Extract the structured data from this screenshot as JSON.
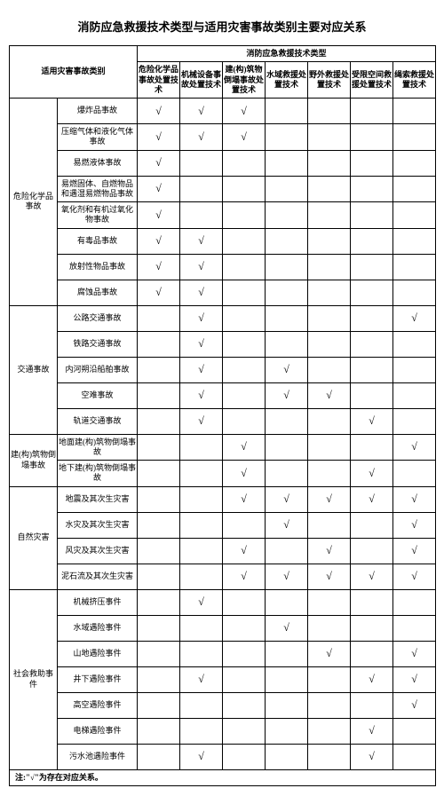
{
  "title": "消防应急救援技术类型与适用灾害事故类别主要对应关系",
  "header": {
    "rowLabel": "适用灾害事故类别",
    "groupLabel": "消防应急救援技术类型",
    "techTypes": [
      "危险化学品事故处置技术",
      "机械设备事故处置技术",
      "建(构)筑物倒塌事故处置技术",
      "水域救援处置技术",
      "野外救援处置技术",
      "受限空间救援处置技术",
      "绳索救援处置技术"
    ]
  },
  "groups": [
    {
      "name": "危险化学品事故",
      "rows": [
        {
          "label": "爆炸品事故",
          "marks": [
            1,
            1,
            1,
            0,
            0,
            0,
            0
          ]
        },
        {
          "label": "压缩气体和液化气体事故",
          "marks": [
            1,
            1,
            1,
            0,
            0,
            0,
            0
          ]
        },
        {
          "label": "易燃液体事故",
          "marks": [
            1,
            0,
            0,
            0,
            0,
            0,
            0
          ]
        },
        {
          "label": "易燃固体、自燃物品和遇湿易燃物品事故",
          "marks": [
            1,
            0,
            0,
            0,
            0,
            0,
            0
          ]
        },
        {
          "label": "氧化剂和有机过氧化物事故",
          "marks": [
            1,
            0,
            0,
            0,
            0,
            0,
            0
          ]
        },
        {
          "label": "有毒品事故",
          "marks": [
            1,
            1,
            0,
            0,
            0,
            0,
            0
          ]
        },
        {
          "label": "放射性物品事故",
          "marks": [
            1,
            1,
            0,
            0,
            0,
            0,
            0
          ]
        },
        {
          "label": "腐蚀品事故",
          "marks": [
            1,
            1,
            0,
            0,
            0,
            0,
            0
          ]
        }
      ]
    },
    {
      "name": "交通事故",
      "rows": [
        {
          "label": "公路交通事故",
          "marks": [
            0,
            1,
            0,
            0,
            0,
            0,
            1
          ]
        },
        {
          "label": "铁路交通事故",
          "marks": [
            0,
            1,
            0,
            0,
            0,
            0,
            0
          ]
        },
        {
          "label": "内河朔沿船舶事故",
          "marks": [
            0,
            1,
            0,
            1,
            0,
            0,
            0
          ]
        },
        {
          "label": "空难事故",
          "marks": [
            0,
            1,
            0,
            1,
            1,
            0,
            0
          ]
        },
        {
          "label": "轨道交通事故",
          "marks": [
            0,
            1,
            0,
            0,
            0,
            1,
            0
          ]
        }
      ]
    },
    {
      "name": "建(构)筑物倒塌事故",
      "rows": [
        {
          "label": "地面建(构)筑物倒塌事故",
          "marks": [
            0,
            0,
            1,
            0,
            0,
            0,
            1
          ]
        },
        {
          "label": "地下建(构)筑物倒塌事故",
          "marks": [
            0,
            0,
            1,
            0,
            0,
            1,
            0
          ]
        }
      ]
    },
    {
      "name": "自然灾害",
      "rows": [
        {
          "label": "地震及其次生灾害",
          "marks": [
            0,
            0,
            1,
            1,
            1,
            1,
            1
          ]
        },
        {
          "label": "水灾及其次生灾害",
          "marks": [
            0,
            0,
            0,
            1,
            0,
            0,
            1
          ]
        },
        {
          "label": "风灾及其次生灾害",
          "marks": [
            0,
            0,
            1,
            0,
            1,
            0,
            1
          ]
        },
        {
          "label": "泥石流及其次生灾害",
          "marks": [
            0,
            0,
            1,
            1,
            1,
            1,
            1
          ]
        }
      ]
    },
    {
      "name": "社会救助事件",
      "rows": [
        {
          "label": "机械挤压事件",
          "marks": [
            0,
            1,
            0,
            0,
            0,
            0,
            0
          ]
        },
        {
          "label": "水域遇险事件",
          "marks": [
            0,
            0,
            0,
            1,
            0,
            0,
            0
          ]
        },
        {
          "label": "山地遇险事件",
          "marks": [
            0,
            0,
            0,
            0,
            1,
            0,
            1
          ]
        },
        {
          "label": "井下遇险事件",
          "marks": [
            0,
            1,
            0,
            0,
            0,
            1,
            1
          ]
        },
        {
          "label": "高空遇险事件",
          "marks": [
            0,
            0,
            0,
            0,
            0,
            0,
            1
          ]
        },
        {
          "label": "电梯遇险事件",
          "marks": [
            0,
            0,
            0,
            0,
            0,
            1,
            0
          ]
        },
        {
          "label": "污水池遇险事件",
          "marks": [
            0,
            1,
            0,
            0,
            0,
            1,
            0
          ]
        }
      ]
    }
  ],
  "noteLabel": "注:\"√\"为存在对应关系。",
  "checkGlyph": "√"
}
